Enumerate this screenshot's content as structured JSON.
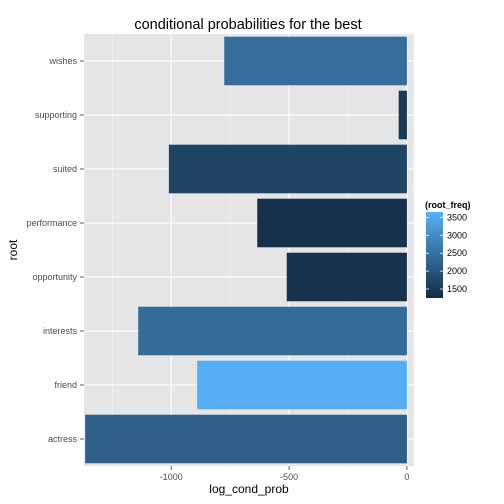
{
  "chart_data": {
    "type": "bar",
    "orientation": "horizontal",
    "title": "conditional probabilities for  the best",
    "xlabel": "log_cond_prob",
    "ylabel": "root",
    "xlim": [
      -1370,
      30
    ],
    "x_ticks": [
      -1000,
      -500,
      0
    ],
    "x_tick_labels": [
      "-1000",
      "-500",
      "0"
    ],
    "grid": true,
    "categories": [
      "wishes",
      "supporting",
      "suited",
      "performance",
      "opportunity",
      "interests",
      "friend",
      "actress"
    ],
    "values": [
      -775,
      -35,
      -1010,
      -635,
      -510,
      -1140,
      -890,
      -1365
    ],
    "color_values": [
      2450,
      1500,
      1700,
      1350,
      1400,
      2400,
      3600,
      2200
    ],
    "legend": {
      "title": "(root_freq)",
      "position": "right",
      "scale_min": 1250,
      "scale_max": 3650,
      "ticks": [
        3500,
        3000,
        2500,
        2000,
        1500
      ],
      "tick_labels": [
        "3500",
        "3000",
        "2500",
        "2000",
        "1500"
      ],
      "color_low": "#132B43",
      "color_high": "#56B1F7"
    },
    "panel_color": "#E5E5E5",
    "grid_color": "#FFFFFF"
  }
}
